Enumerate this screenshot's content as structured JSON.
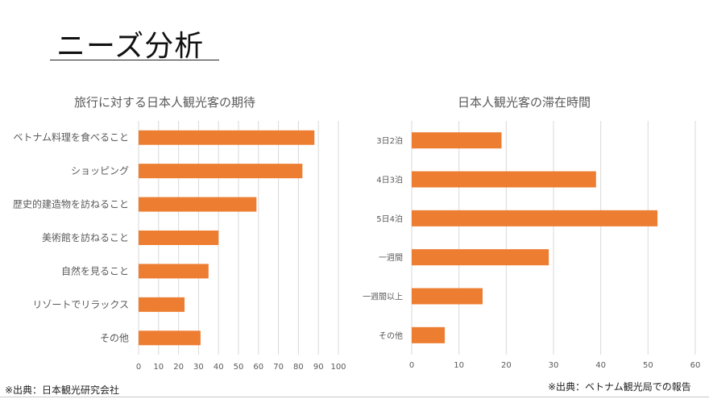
{
  "slide": {
    "title": "ニーズ分析",
    "source_left": "※出典：日本観光研究会社",
    "source_right": "※出典：ベトナム観光局での報告"
  },
  "colors": {
    "bar": "#ED7D31",
    "grid": "#D9D9D9",
    "text": "#595959"
  },
  "chart_data": [
    {
      "type": "bar",
      "orientation": "horizontal",
      "title": "旅行に対する日本人観光客の期待",
      "categories": [
        "ベトナム料理を食べること",
        "ショッピング",
        "歴史的建造物を訪ねること",
        "美術館を訪ねること",
        "自然を見ること",
        "リゾートでリラックス",
        "その他"
      ],
      "values": [
        88,
        82,
        59,
        40,
        35,
        23,
        31
      ],
      "xlim": [
        0,
        100
      ],
      "ticks": [
        0,
        10,
        20,
        30,
        40,
        50,
        60,
        70,
        80,
        90,
        100
      ],
      "grid": true,
      "legend": "none"
    },
    {
      "type": "bar",
      "orientation": "horizontal",
      "title": "日本人観光客の滞在時間",
      "categories": [
        "3日2泊",
        "4日3泊",
        "5日4泊",
        "一週間",
        "一週間以上",
        "その他"
      ],
      "values": [
        19,
        39,
        52,
        29,
        15,
        7
      ],
      "xlim": [
        0,
        60
      ],
      "ticks": [
        0,
        10,
        20,
        30,
        40,
        50,
        60
      ],
      "grid": true,
      "legend": "none"
    }
  ]
}
